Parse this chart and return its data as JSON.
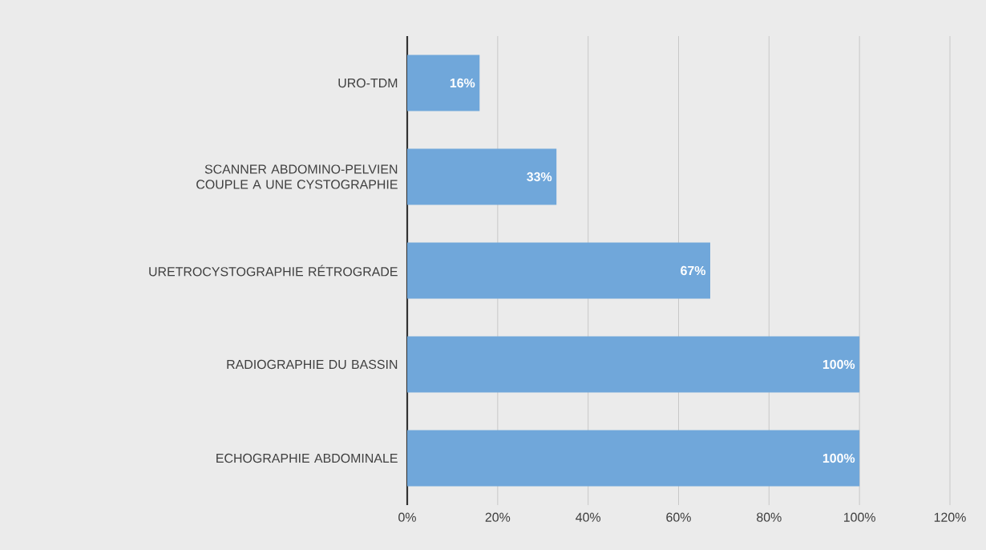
{
  "chart_data": {
    "type": "bar",
    "orientation": "horizontal",
    "categories": [
      "URO-TDM",
      "SCANNER ABDOMINO-PELVIEN COUPLE A UNE CYSTOGRAPHIE",
      "URETROCYSTOGRAPHIE RÉTROGRADE",
      "RADIOGRAPHIE DU BASSIN",
      "ECHOGRAPHIE ABDOMINALE"
    ],
    "values": [
      16,
      33,
      67,
      100,
      100
    ],
    "value_labels": [
      "16%",
      "33%",
      "67%",
      "100%",
      "100%"
    ],
    "color": "#70a7da",
    "xlim": [
      0,
      120
    ],
    "xticks": [
      {
        "value": 0,
        "label": "0%"
      },
      {
        "value": 20,
        "label": "20%"
      },
      {
        "value": 40,
        "label": "40%"
      },
      {
        "value": 60,
        "label": "60%"
      },
      {
        "value": 80,
        "label": "80%"
      },
      {
        "value": 100,
        "label": "100%"
      },
      {
        "value": 120,
        "label": "120%"
      }
    ],
    "grid": "x"
  }
}
